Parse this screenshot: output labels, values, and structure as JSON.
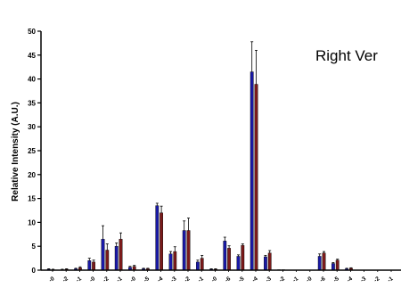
{
  "chart_data": {
    "type": "bar",
    "title": "",
    "xlabel": "",
    "ylabel": "Relative Intensity (A.U.)",
    "annotation": "Right Ver",
    "ylim": [
      0,
      50
    ],
    "yticks": [
      0,
      5,
      10,
      15,
      20,
      25,
      30,
      35,
      40,
      45,
      50
    ],
    "grid": false,
    "legend": "none",
    "categories": [
      "-0",
      "-2",
      "-1",
      "-0",
      "-2",
      "-1",
      "-0",
      "-5",
      "-4",
      "-3",
      "-2",
      "-1",
      "-0",
      "-6",
      "-5",
      "-4",
      "-3",
      "-2",
      "-1",
      "-0",
      "-6",
      "-5",
      "-4",
      "-3",
      "-2",
      "-1",
      "-0"
    ],
    "series": [
      {
        "color": "#1a1aa6",
        "values": [
          0.2,
          0.1,
          0.3,
          2.0,
          6.5,
          5.0,
          0.6,
          0.3,
          13.5,
          3.4,
          8.3,
          1.7,
          0.2,
          6.1,
          2.9,
          41.5,
          2.8,
          0.1,
          0.0,
          0.0,
          2.9,
          1.4,
          0.3,
          0.0,
          0.0,
          0.0,
          0.0
        ],
        "errors": [
          0.1,
          0.1,
          0.1,
          0.5,
          2.8,
          0.7,
          0.2,
          0.1,
          0.5,
          0.5,
          2.0,
          0.4,
          0.1,
          0.8,
          0.3,
          6.3,
          0.3,
          0.0,
          0.0,
          0.0,
          0.5,
          0.2,
          0.1,
          0.0,
          0.0,
          0.0,
          0.0
        ]
      },
      {
        "color": "#7a1a1a",
        "values": [
          0.1,
          0.2,
          0.5,
          1.7,
          4.2,
          6.5,
          0.8,
          0.3,
          12.0,
          3.9,
          8.3,
          2.5,
          0.2,
          4.6,
          5.2,
          38.9,
          3.6,
          0.1,
          0.0,
          0.0,
          3.6,
          2.1,
          0.4,
          0.0,
          0.0,
          0.0,
          0.0
        ],
        "errors": [
          0.1,
          0.1,
          0.2,
          0.4,
          1.3,
          1.3,
          0.2,
          0.1,
          1.4,
          1.0,
          2.6,
          0.6,
          0.1,
          0.5,
          0.3,
          7.1,
          0.5,
          0.0,
          0.0,
          0.0,
          0.3,
          0.2,
          0.1,
          0.0,
          0.0,
          0.0,
          0.0
        ]
      }
    ]
  }
}
